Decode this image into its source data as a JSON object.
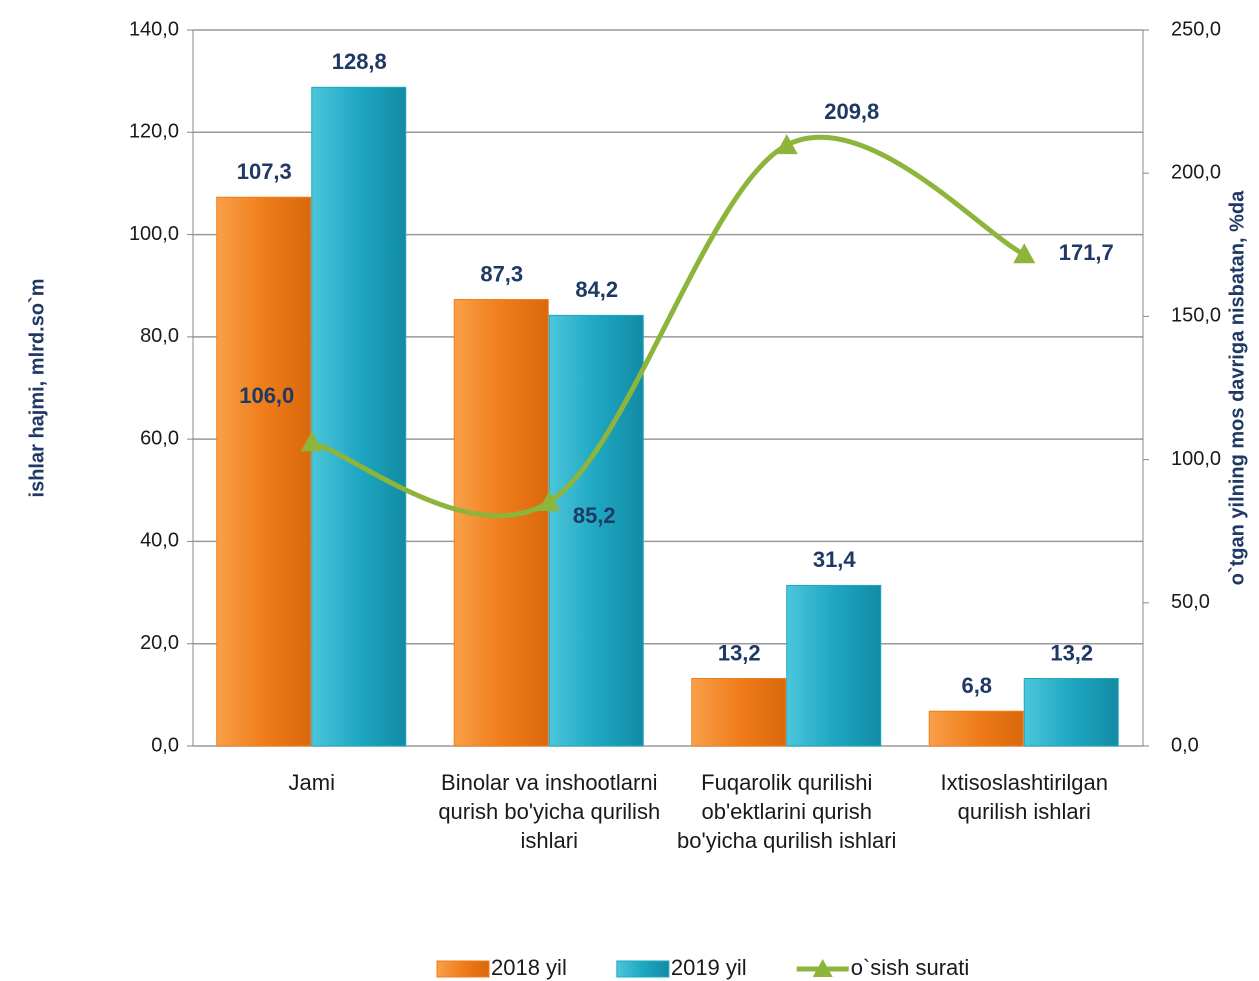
{
  "chart_data": {
    "type": "bar-line",
    "categories": [
      "Jami",
      "Binolar va inshootlarni qurish bo'yicha qurilish ishlari",
      "Fuqarolik qurilishi ob'ektlarini qurish bo'yicha qurilish ishlari",
      "Ixtisoslashtirilgan qurilish ishlari"
    ],
    "series": [
      {
        "name": "2018 yil",
        "type": "bar",
        "color": "#ef7d1a",
        "values": [
          107.3,
          87.3,
          13.2,
          6.8
        ],
        "value_labels": [
          "107,3",
          "87,3",
          "13,2",
          "6,8"
        ]
      },
      {
        "name": "2019 yil",
        "type": "bar",
        "color": "#1ea7c2",
        "values": [
          128.8,
          84.2,
          31.4,
          13.2
        ],
        "value_labels": [
          "128,8",
          "84,2",
          "31,4",
          "13,2"
        ]
      },
      {
        "name": "o`sish surati",
        "type": "line",
        "axis": "y2",
        "color": "#8db53c",
        "values": [
          106.0,
          85.2,
          209.8,
          171.7
        ],
        "value_labels": [
          "106,0",
          "85,2",
          "209,8",
          "171,7"
        ]
      }
    ],
    "ylabel": "ishlar hajmi, mlrd.so`m",
    "y2label": "o`tgan yilning mos davriga nisbatan, %da",
    "ylim": [
      0,
      140
    ],
    "yticks": [
      {
        "value": 0,
        "label": "0,0"
      },
      {
        "value": 20,
        "label": "20,0"
      },
      {
        "value": 40,
        "label": "40,0"
      },
      {
        "value": 60,
        "label": "60,0"
      },
      {
        "value": 80,
        "label": "80,0"
      },
      {
        "value": 100,
        "label": "100,0"
      },
      {
        "value": 120,
        "label": "120,0"
      },
      {
        "value": 140,
        "label": "140,0"
      }
    ],
    "y2lim": [
      0,
      250
    ],
    "y2ticks": [
      {
        "value": 0,
        "label": "0,0"
      },
      {
        "value": 50,
        "label": "50,0"
      },
      {
        "value": 100,
        "label": "100,0"
      },
      {
        "value": 150,
        "label": "150,0"
      },
      {
        "value": 200,
        "label": "200,0"
      },
      {
        "value": 250,
        "label": "250,0"
      }
    ],
    "grid": true,
    "legend": "bottom"
  }
}
